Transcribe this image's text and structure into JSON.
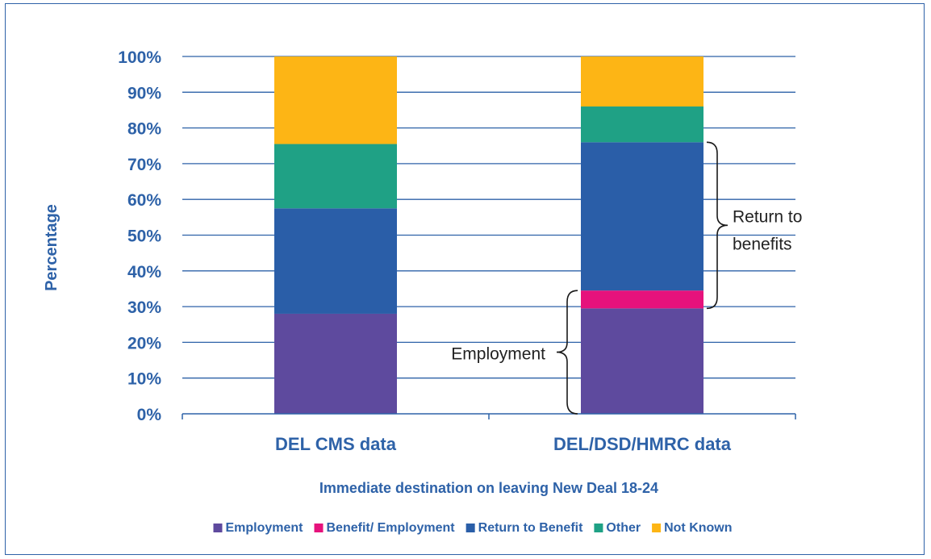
{
  "chart_data": {
    "type": "bar",
    "stacked": true,
    "categories": [
      "DEL CMS data",
      "DEL/DSD/HMRC data"
    ],
    "series": [
      {
        "name": "Employment",
        "color": "#5e4a9e",
        "values": [
          28,
          29.5
        ]
      },
      {
        "name": "Benefit/ Employment",
        "color": "#e6127c",
        "values": [
          0,
          5
        ]
      },
      {
        "name": "Return to Benefit",
        "color": "#2a5ea8",
        "values": [
          29.5,
          41.5
        ]
      },
      {
        "name": "Other",
        "color": "#1fa185",
        "values": [
          18,
          10
        ]
      },
      {
        "name": "Not Known",
        "color": "#fdb515",
        "values": [
          24.5,
          14
        ]
      }
    ],
    "xlabel": "Immediate destination on leaving New Deal 18-24",
    "ylabel": "Percentage",
    "ylim": [
      0,
      100
    ],
    "yticks": [
      "0%",
      "10%",
      "20%",
      "30%",
      "40%",
      "50%",
      "60%",
      "70%",
      "80%",
      "90%",
      "100%"
    ],
    "grid": true,
    "legend_position": "bottom",
    "annotations": [
      {
        "text": "Employment",
        "category": "DEL/DSD/HMRC data",
        "range": [
          0,
          34.5
        ]
      },
      {
        "text": "Return to benefits",
        "category": "DEL/DSD/HMRC data",
        "range": [
          29.5,
          76
        ]
      }
    ]
  },
  "colors": {
    "axis_text": "#2e62a8",
    "gridline": "#2e62a8",
    "frame": "#2e62a8"
  }
}
